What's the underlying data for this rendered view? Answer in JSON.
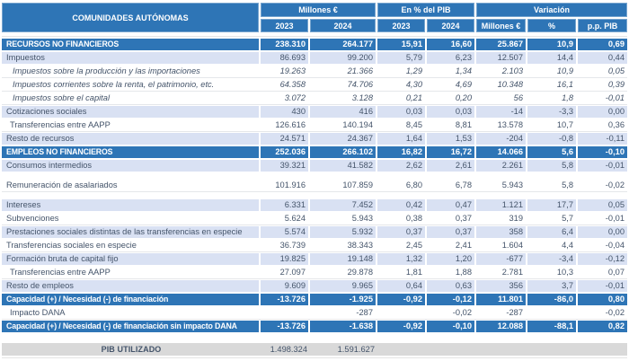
{
  "colors": {
    "header_blue": "#2E75B6",
    "row_shade": "#D9E1F3",
    "text": "#44546A",
    "footer_grey": "#D9D9D9",
    "white": "#FFFFFF"
  },
  "table": {
    "title": "COMUNIDADES AUTÓNOMAS",
    "col_groups": [
      {
        "label": "Millones €",
        "span": 2
      },
      {
        "label": "En % del PIB",
        "span": 2
      },
      {
        "label": "Variación",
        "span": 3
      }
    ],
    "sub_headers": [
      "2023",
      "2024",
      "2023",
      "2024",
      "Millones €",
      "%",
      "p.p. PIB"
    ],
    "col_keys": [
      "millones-2023",
      "millones-2024",
      "pct-pib-2023",
      "pct-pib-2024",
      "var-millones",
      "var-pct",
      "var-pp-pib"
    ],
    "rows": [
      {
        "label": "RECURSOS NO FINANCIEROS",
        "style": "section",
        "indent": 0,
        "gap_after": false,
        "values": [
          "238.310",
          "264.177",
          "15,91",
          "16,60",
          "25.867",
          "10,9",
          "0,69"
        ]
      },
      {
        "label": "Impuestos",
        "style": "shaded",
        "indent": 0,
        "gap_after": false,
        "values": [
          "86.693",
          "99.200",
          "5,79",
          "6,23",
          "12.507",
          "14,4",
          "0,44"
        ]
      },
      {
        "label": "Impuestos sobre la producción y las importaciones",
        "style": "sub",
        "indent": 2,
        "gap_after": false,
        "values": [
          "19.263",
          "21.366",
          "1,29",
          "1,34",
          "2.103",
          "10,9",
          "0,05"
        ]
      },
      {
        "label": "Impuestos corrientes sobre la renta, el patrimonio, etc.",
        "style": "sub",
        "indent": 2,
        "gap_after": false,
        "values": [
          "64.358",
          "74.706",
          "4,30",
          "4,69",
          "10.348",
          "16,1",
          "0,39"
        ]
      },
      {
        "label": "Impuestos sobre el capital",
        "style": "sub",
        "indent": 2,
        "gap_after": false,
        "values": [
          "3.072",
          "3.128",
          "0,21",
          "0,20",
          "56",
          "1,8",
          "-0,01"
        ]
      },
      {
        "label": "Cotizaciones sociales",
        "style": "shaded",
        "indent": 0,
        "gap_after": false,
        "values": [
          "430",
          "416",
          "0,03",
          "0,03",
          "-14",
          "-3,3",
          "0,00"
        ]
      },
      {
        "label": "Transferencias entre AAPP",
        "style": "plain",
        "indent": 1,
        "gap_after": false,
        "values": [
          "126.616",
          "140.194",
          "8,45",
          "8,81",
          "13.578",
          "10,7",
          "0,36"
        ]
      },
      {
        "label": "Resto de recursos",
        "style": "shaded",
        "indent": 0,
        "gap_after": false,
        "values": [
          "24.571",
          "24.367",
          "1,64",
          "1,53",
          "-204",
          "-0,8",
          "-0,11"
        ]
      },
      {
        "label": "EMPLEOS NO FINANCIEROS",
        "style": "section",
        "indent": 0,
        "gap_after": false,
        "values": [
          "252.036",
          "266.102",
          "16,82",
          "16,72",
          "14.066",
          "5,6",
          "-0,10"
        ]
      },
      {
        "label": "Consumos intermedios",
        "style": "shaded",
        "indent": 0,
        "gap_after": true,
        "values": [
          "39.321",
          "41.582",
          "2,62",
          "2,61",
          "2.261",
          "5,8",
          "-0,01"
        ]
      },
      {
        "label": "Remuneración de asalariados",
        "style": "plain",
        "indent": 0,
        "gap_after": true,
        "values": [
          "101.916",
          "107.859",
          "6,80",
          "6,78",
          "5.943",
          "5,8",
          "-0,02"
        ]
      },
      {
        "label": "Intereses",
        "style": "shaded",
        "indent": 0,
        "gap_after": false,
        "values": [
          "6.331",
          "7.452",
          "0,42",
          "0,47",
          "1.121",
          "17,7",
          "0,05"
        ]
      },
      {
        "label": "Subvenciones",
        "style": "plain",
        "indent": 0,
        "gap_after": false,
        "values": [
          "5.624",
          "5.943",
          "0,38",
          "0,37",
          "319",
          "5,7",
          "-0,01"
        ]
      },
      {
        "label": "Prestaciones sociales distintas de las transferencias en especie",
        "style": "shaded",
        "indent": 0,
        "gap_after": false,
        "values": [
          "5.574",
          "5.932",
          "0,37",
          "0,37",
          "358",
          "6,4",
          "0,00"
        ]
      },
      {
        "label": "Transferencias sociales en especie",
        "style": "plain",
        "indent": 0,
        "gap_after": false,
        "values": [
          "36.739",
          "38.343",
          "2,45",
          "2,41",
          "1.604",
          "4,4",
          "-0,04"
        ]
      },
      {
        "label": "Formación bruta de capital fijo",
        "style": "shaded",
        "indent": 0,
        "gap_after": false,
        "values": [
          "19.825",
          "19.148",
          "1,32",
          "1,20",
          "-677",
          "-3,4",
          "-0,12"
        ]
      },
      {
        "label": "Transferencias entre AAPP",
        "style": "plain",
        "indent": 1,
        "gap_after": false,
        "values": [
          "27.097",
          "29.878",
          "1,81",
          "1,88",
          "2.781",
          "10,3",
          "0,07"
        ]
      },
      {
        "label": "Resto de empleos",
        "style": "shaded",
        "indent": 0,
        "gap_after": false,
        "values": [
          "9.609",
          "9.965",
          "0,64",
          "0,63",
          "356",
          "3,7",
          "-0,01"
        ]
      },
      {
        "label": "Capacidad (+) / Necesidad (-) de financiación",
        "style": "section",
        "indent": 0,
        "gap_after": false,
        "values": [
          "-13.726",
          "-1.925",
          "-0,92",
          "-0,12",
          "11.801",
          "-86,0",
          "0,80"
        ]
      },
      {
        "label": "Impacto DANA",
        "style": "plain",
        "indent": 1,
        "gap_after": false,
        "values": [
          "",
          "-287",
          "",
          "-0,02",
          "-287",
          "",
          "-0,02"
        ]
      },
      {
        "label": "Capacidad (+) / Necesidad (-) de financiación sin impacto DANA",
        "style": "section",
        "indent": 0,
        "gap_after": false,
        "values": [
          "-13.726",
          "-1.638",
          "-0,92",
          "-0,10",
          "12.088",
          "-88,1",
          "0,82"
        ]
      }
    ],
    "footer": {
      "label": "PIB UTILIZADO",
      "values": [
        "1.498.324",
        "1.591.627"
      ]
    }
  }
}
